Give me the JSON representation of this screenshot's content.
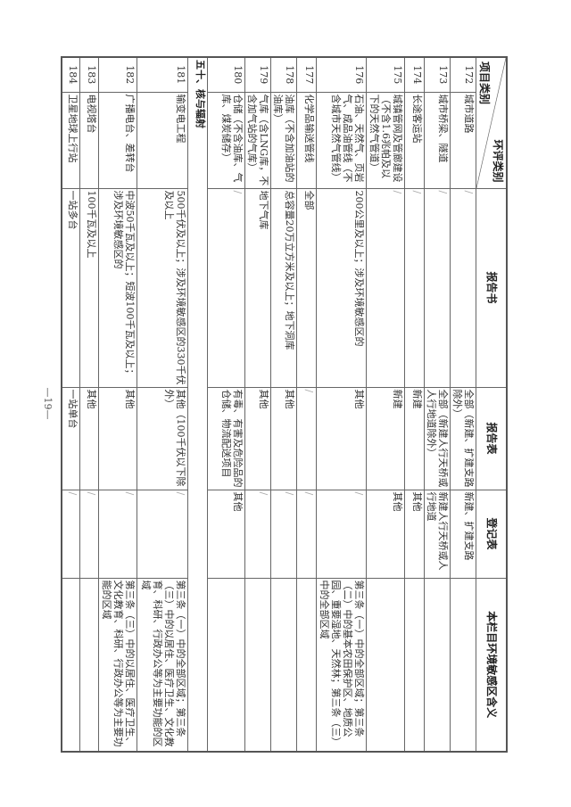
{
  "header": {
    "diag_top": "环评类别",
    "diag_bottom": "项目类别",
    "col_report_book": "报告书",
    "col_report_form": "报告表",
    "col_register": "登记表",
    "col_sensitive": "本栏目环境敏感区含义"
  },
  "rows": [
    {
      "no": "172",
      "name": "城市道路",
      "book": "/",
      "form": "全部（新建、扩建支路除外）",
      "reg": "新建、扩建支路",
      "sens": ""
    },
    {
      "no": "173",
      "name": "城市桥梁、隧道",
      "book": "/",
      "form": "全部（新建人行天桥或人行地道除外）",
      "reg": "新建人行天桥或人行地道",
      "sens": ""
    },
    {
      "no": "174",
      "name": "长途客运站",
      "book": "/",
      "form": "新建",
      "reg": "其他",
      "sens": ""
    },
    {
      "no": "175",
      "name": "城镇管网及管廊建设（不含1.6兆帕及以下的天然气管道）",
      "book": "/",
      "form": "新建",
      "reg": "其他",
      "sens": ""
    },
    {
      "no": "176",
      "name": "石油、天然气、页岩气、成品油管线（不含城市天然气管线）",
      "book": "200公里及以上；涉及环境敏感区的",
      "form": "其他",
      "reg": "/",
      "sens": "第三条（一）中的全部区域；第三条（二）中的基本农田保护区、地质公园、重要湿地、天然林；第三条（三）中的全部区域"
    },
    {
      "no": "177",
      "name": "化学品输送管线",
      "book": "全部",
      "form": "/",
      "reg": "/",
      "sens": ""
    },
    {
      "no": "178",
      "name": "油库（不含加油站的油库）",
      "book": "总容量20万立方米及以上；地下洞库",
      "form": "其他",
      "reg": "/",
      "sens": ""
    },
    {
      "no": "179",
      "name": "气库（含LNG库，不含加气站的气库）",
      "book": "地下气库",
      "form": "其他",
      "reg": "/",
      "sens": ""
    },
    {
      "no": "180",
      "name": "仓储（不含油库、气库、煤炭储存）",
      "book": "/",
      "form": "有毒、有害及危险品的仓储、物流配送项目",
      "reg": "其他",
      "sens": ""
    },
    {
      "section": "五十、核与辐射"
    },
    {
      "no": "181",
      "name": "输变电工程",
      "book": "500千伏及以上；涉及环境敏感区的330千伏及以上",
      "form": "其他（100千伏以下除外）",
      "reg": "/",
      "sens": "第三条（一）中的全部区域；第三条（三）中的以居住、医疗卫生、文化教育、科研、行政办公等为主要功能的区域"
    },
    {
      "no": "182",
      "name": "广播电台、差转台",
      "book": "中波50千瓦及以上；短波100千瓦及以上；涉及环境敏感区的",
      "form": "其他",
      "reg": "/",
      "sens": "第三条（三）中的以居住、医疗卫生、文化教育、科研、行政办公等为主要功能的区域"
    },
    {
      "no": "183",
      "name": "电视塔台",
      "book": "100千瓦及以上",
      "form": "其他",
      "reg": "/",
      "sens": ""
    },
    {
      "no": "184",
      "name": "卫星地球上行站",
      "book": "一站多台",
      "form": "一站单台",
      "reg": "/",
      "sens": ""
    }
  ],
  "page_number": "—19—"
}
